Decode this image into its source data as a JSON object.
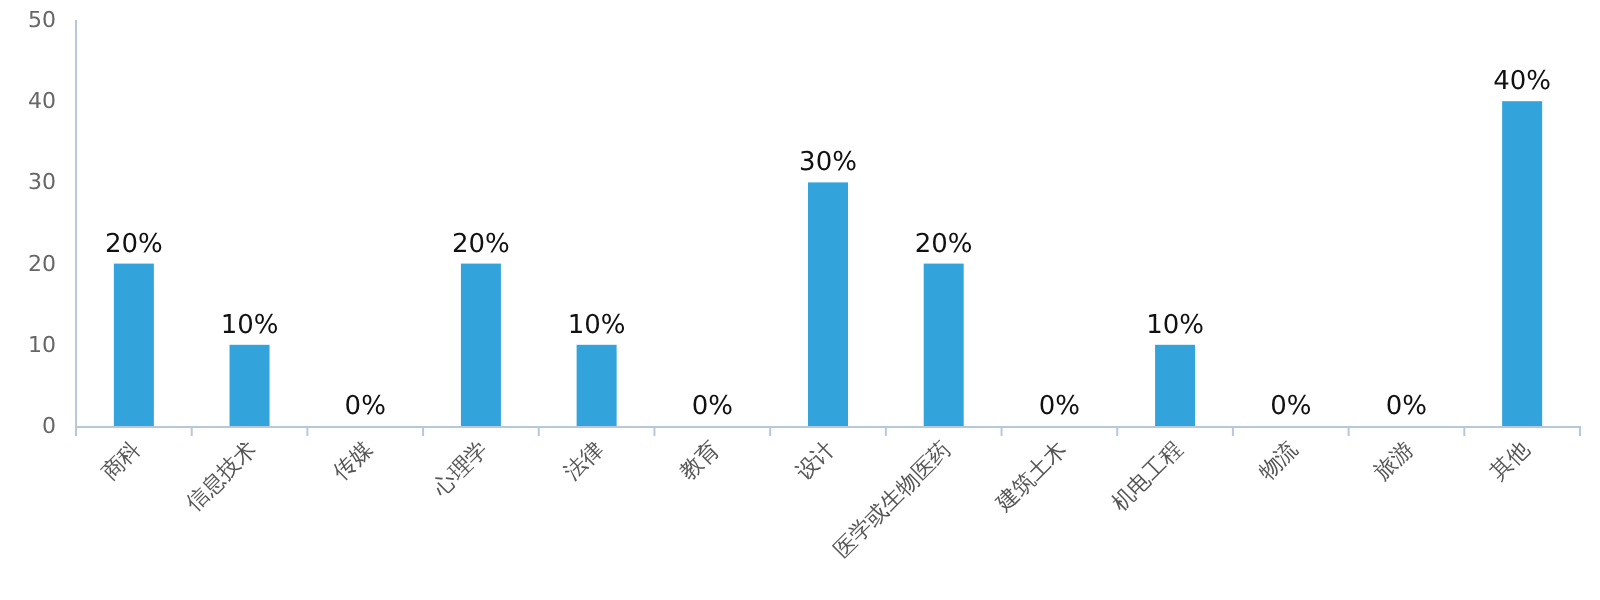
{
  "chart_data": {
    "type": "bar",
    "categories": [
      "商科",
      "信息技术",
      "传媒",
      "心理学",
      "法律",
      "教育",
      "设计",
      "医学或生物医药",
      "建筑土木",
      "机电工程",
      "物流",
      "旅游",
      "其他"
    ],
    "values": [
      20,
      10,
      0,
      20,
      10,
      0,
      30,
      20,
      0,
      10,
      0,
      0,
      40
    ],
    "value_labels": [
      "20%",
      "10%",
      "0%",
      "20%",
      "10%",
      "0%",
      "30%",
      "20%",
      "0%",
      "10%",
      "0%",
      "0%",
      "40%"
    ],
    "color": "#33a3dc",
    "ylim": [
      0,
      50
    ],
    "yticks": [
      0,
      10,
      20,
      30,
      40,
      50
    ],
    "grid": false
  }
}
